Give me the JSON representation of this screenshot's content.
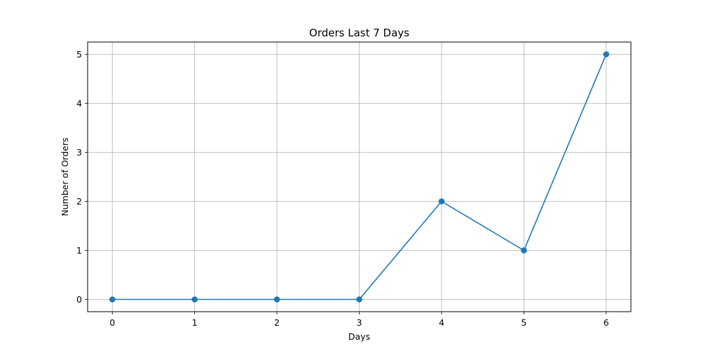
{
  "chart_data": {
    "type": "line",
    "title": "Orders Last 7 Days",
    "xlabel": "Days",
    "ylabel": "Number of Orders",
    "x": [
      0,
      1,
      2,
      3,
      4,
      5,
      6
    ],
    "series": [
      {
        "values": [
          0,
          0,
          0,
          0,
          2,
          1,
          5
        ],
        "color": "#1f77b4",
        "marker": "circle"
      }
    ],
    "xticks": [
      0,
      1,
      2,
      3,
      4,
      5,
      6
    ],
    "yticks": [
      0,
      1,
      2,
      3,
      4,
      5
    ],
    "xlim": [
      -0.3,
      6.3
    ],
    "ylim": [
      -0.25,
      5.25
    ],
    "grid": true,
    "legend": false
  }
}
